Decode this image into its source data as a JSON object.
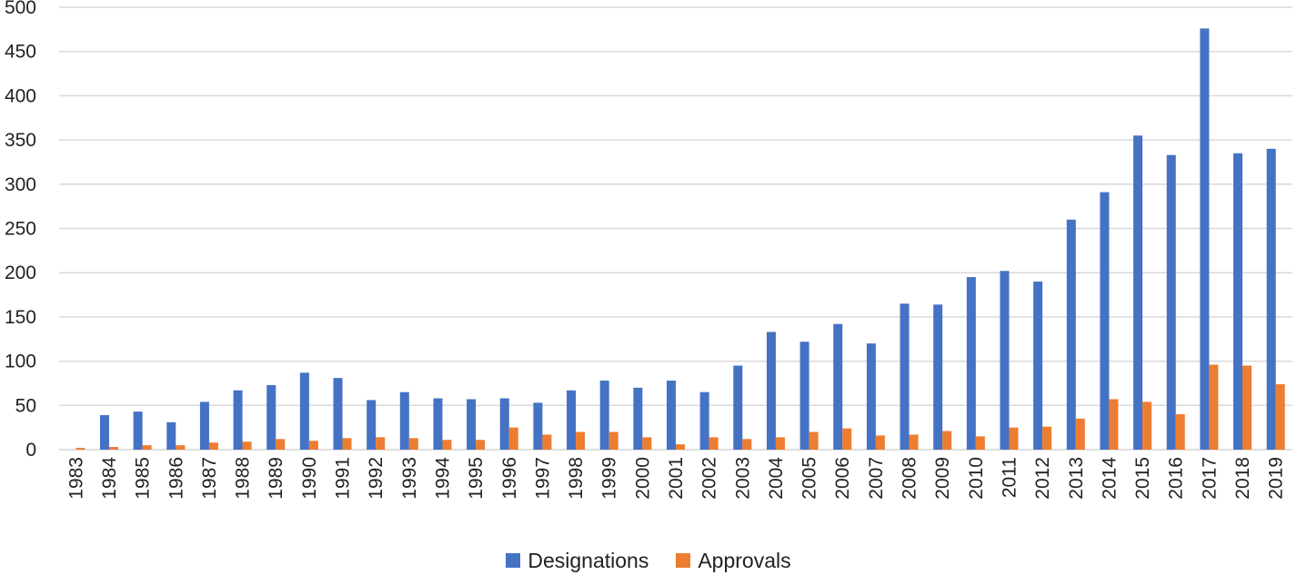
{
  "chart_data": {
    "type": "bar",
    "title": "",
    "xlabel": "",
    "ylabel": "",
    "ylim": [
      0,
      500
    ],
    "yticks": [
      0,
      50,
      100,
      150,
      200,
      250,
      300,
      350,
      400,
      450,
      500
    ],
    "grid": true,
    "legend_position": "bottom",
    "categories": [
      "1983",
      "1984",
      "1985",
      "1986",
      "1987",
      "1988",
      "1989",
      "1990",
      "1991",
      "1992",
      "1993",
      "1994",
      "1995",
      "1996",
      "1997",
      "1998",
      "1999",
      "2000",
      "2001",
      "2002",
      "2003",
      "2004",
      "2005",
      "2006",
      "2007",
      "2008",
      "2009",
      "2010",
      "2011",
      "2012",
      "2013",
      "2014",
      "2015",
      "2016",
      "2017",
      "2018",
      "2019"
    ],
    "series": [
      {
        "name": "Designations",
        "color": "#4472C4",
        "values": [
          0,
          39,
          43,
          31,
          54,
          67,
          73,
          87,
          81,
          56,
          65,
          58,
          57,
          58,
          53,
          67,
          78,
          70,
          78,
          65,
          95,
          133,
          122,
          142,
          120,
          165,
          164,
          195,
          202,
          190,
          260,
          291,
          355,
          333,
          476,
          335,
          340
        ]
      },
      {
        "name": "Approvals",
        "color": "#ED7D31",
        "values": [
          2,
          3,
          5,
          5,
          8,
          9,
          12,
          10,
          13,
          14,
          13,
          11,
          11,
          25,
          17,
          20,
          20,
          14,
          6,
          14,
          12,
          14,
          20,
          24,
          16,
          17,
          21,
          15,
          25,
          26,
          35,
          57,
          54,
          40,
          96,
          95,
          74
        ]
      }
    ]
  }
}
